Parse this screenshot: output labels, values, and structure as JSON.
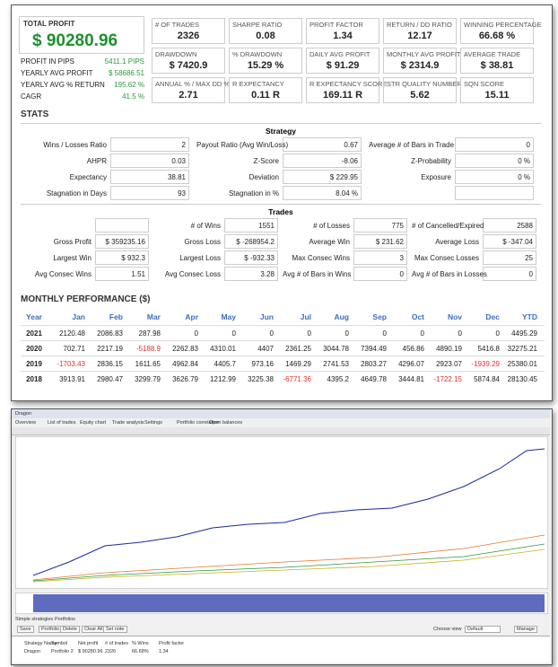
{
  "summary": {
    "total_profit_label": "TOTAL PROFIT",
    "total_profit": "$ 90280.96",
    "side_stats": [
      [
        "PROFIT IN PIPS",
        "5411.1 PIPS"
      ],
      [
        "YEARLY AVG PROFIT",
        "$ 58686.51"
      ],
      [
        "YEARLY AVG % RETURN",
        "195.62 %"
      ],
      [
        "CAGR",
        "41.5 %"
      ]
    ],
    "metrics": [
      [
        [
          "# OF TRADES",
          "2326"
        ],
        [
          "SHARPE RATIO",
          "0.08"
        ],
        [
          "PROFIT FACTOR",
          "1.34"
        ],
        [
          "RETURN / DD RATIO",
          "12.17"
        ],
        [
          "WINNING PERCENTAGE",
          "66.68 %"
        ]
      ],
      [
        [
          "DRAWDOWN",
          "$ 7420.9"
        ],
        [
          "% DRAWDOWN",
          "15.29 %"
        ],
        [
          "DAILY AVG PROFIT",
          "$ 91.29"
        ],
        [
          "MONTHLY AVG PROFIT",
          "$ 2314.9"
        ],
        [
          "AVERAGE TRADE",
          "$ 38.81"
        ]
      ],
      [
        [
          "ANNUAL % / MAX DD %",
          "2.71"
        ],
        [
          "R EXPECTANCY",
          "0.11 R"
        ],
        [
          "R EXPECTANCY SCORE",
          "169.11 R"
        ],
        [
          "STR QUALITY NUMBER",
          "5.62"
        ],
        [
          "SQN SCORE",
          "15.11"
        ]
      ]
    ]
  },
  "stats": {
    "title": "STATS",
    "strategy": {
      "title": "Strategy",
      "rows": [
        [
          [
            "Wins / Losses Ratio",
            "2"
          ],
          [
            "Payout Ratio (Avg Win/Loss)",
            "0.67"
          ],
          [
            "Average # of Bars in Trade",
            "0"
          ]
        ],
        [
          [
            "AHPR",
            "0.03"
          ],
          [
            "Z-Score",
            "-8.06"
          ],
          [
            "Z-Probability",
            "0 %"
          ]
        ],
        [
          [
            "Expectancy",
            "38.81"
          ],
          [
            "Deviation",
            "$ 229.95"
          ],
          [
            "Exposure",
            "0 %"
          ]
        ],
        [
          [
            "Stagnation in Days",
            "93"
          ],
          [
            "Stagnation in %",
            "8.04 %"
          ]
        ]
      ]
    },
    "trades": {
      "title": "Trades",
      "rows": [
        [
          null,
          [
            "# of Wins",
            "1551"
          ],
          [
            "# of Losses",
            "775"
          ],
          [
            "# of Cancelled/Expired",
            "2588"
          ]
        ],
        [
          [
            "Gross Profit",
            "$ 359235.16"
          ],
          [
            "Gross Loss",
            "$ -268954.2"
          ],
          [
            "Average Win",
            "$ 231.62"
          ],
          [
            "Average Loss",
            "$ -347.04"
          ]
        ],
        [
          [
            "Largest Win",
            "$ 932.3"
          ],
          [
            "Largest Loss",
            "$ -932.33"
          ],
          [
            "Max Consec Wins",
            "3"
          ],
          [
            "Max Consec Losses",
            "25"
          ]
        ],
        [
          [
            "Avg Consec Wins",
            "1.51"
          ],
          [
            "Avg Consec Loss",
            "3.28"
          ],
          [
            "Avg # of Bars in Wins",
            "0"
          ],
          [
            "Avg # of Bars in Losses",
            "0"
          ]
        ]
      ]
    }
  },
  "monthly": {
    "title": "MONTHLY PERFORMANCE ($)",
    "header": [
      "Year",
      "Jan",
      "Feb",
      "Mar",
      "Apr",
      "May",
      "Jun",
      "Jul",
      "Aug",
      "Sep",
      "Oct",
      "Nov",
      "Dec",
      "YTD"
    ],
    "rows": [
      [
        "2021",
        "2120.48",
        "2086.83",
        "287.98",
        "0",
        "0",
        "0",
        "0",
        "0",
        "0",
        "0",
        "0",
        "0",
        "4495.29"
      ],
      [
        "2020",
        "702.71",
        "2217.19",
        "-5188.9",
        "2262.83",
        "4310.01",
        "4407",
        "2361.25",
        "3044.78",
        "7394.49",
        "456.86",
        "4890.19",
        "5416.8",
        "32275.21"
      ],
      [
        "2019",
        "-1703.43",
        "2836.15",
        "1611.65",
        "4962.84",
        "4405.7",
        "973.16",
        "1469.29",
        "2741.53",
        "2803.27",
        "4296.07",
        "2923.07",
        "-1939.29",
        "25380.01"
      ],
      [
        "2018",
        "3913.91",
        "2980.47",
        "3299.79",
        "3626.79",
        "1212.99",
        "3225.38",
        "-6771.36",
        "4395.2",
        "4649.78",
        "3444.81",
        "-1722.15",
        "5874.84",
        "28130.45"
      ]
    ]
  },
  "app": {
    "window_title": "Dragon",
    "tabs": [
      "Overview",
      "List of trades",
      "Equity chart",
      "Trade analysis",
      "Settings",
      "Portfolio correlation",
      "Open balances"
    ],
    "bottom_tabs": [
      "Simple strategies",
      "Portfolios"
    ],
    "buttons": [
      "Save",
      "Portfolio",
      "Delete",
      "Clear All",
      "Set note"
    ],
    "view_label": "Choose view",
    "view_value": "Default",
    "manage": "Manage",
    "table_header": [
      "Strategy Name",
      "Symbol",
      "Net profit",
      "# of trades",
      "% Wins",
      "Profit factor"
    ],
    "table_row": [
      "Dragon",
      "Portfolio 2",
      "$ 90280.96",
      "2326",
      "66.68%",
      "1.34"
    ]
  }
}
